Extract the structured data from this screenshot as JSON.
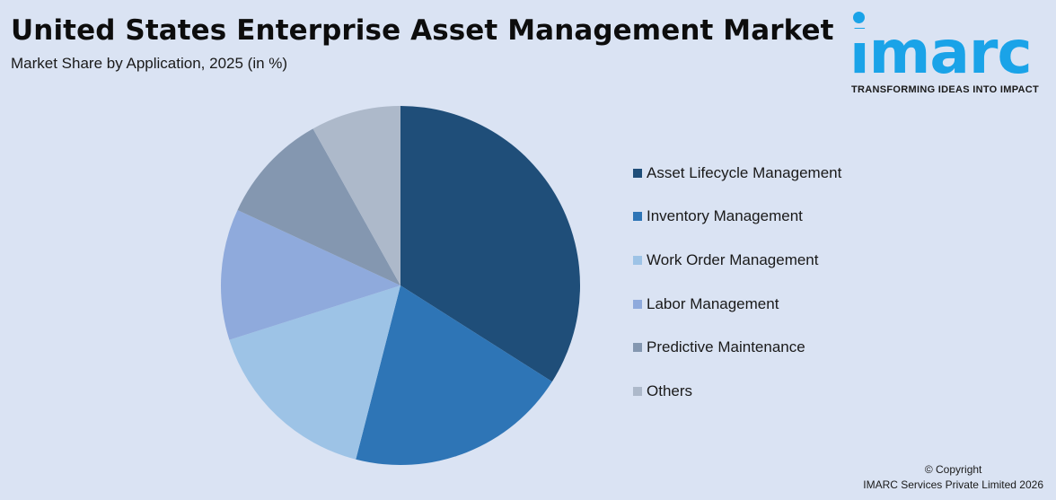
{
  "header": {
    "title": "United States Enterprise Asset Management Market",
    "subtitle": "Market Share by Application, 2025 (in %)"
  },
  "logo": {
    "wordmark": "imarc",
    "tagline": "TRANSFORMING IDEAS INTO IMPACT",
    "color": "#1AA3E8"
  },
  "footer": {
    "copyright": "© Copyright",
    "company": "IMARC Services Private Limited 2026"
  },
  "colors": {
    "background": "#DAE3F3"
  },
  "chart_data": {
    "type": "pie",
    "title": "United States Enterprise Asset Management Market",
    "subtitle": "Market Share by Application, 2025 (in %)",
    "start_angle_deg": 0,
    "direction": "clockwise",
    "legend_position": "right",
    "categories": [
      "Asset Lifecycle Management",
      "Inventory Management",
      "Work Order Management",
      "Labor Management",
      "Predictive Maintenance",
      "Others"
    ],
    "values": [
      34.0,
      20.0,
      16.1,
      11.8,
      10.0,
      8.1
    ],
    "colors": [
      "#1F4E79",
      "#2E75B6",
      "#9DC3E6",
      "#8FAADC",
      "#8497B0",
      "#ADB9CA"
    ],
    "data_labels_shown": false
  },
  "legend": {
    "items": [
      {
        "label": "Asset Lifecycle Management",
        "color": "#1F4E79"
      },
      {
        "label": "Inventory Management",
        "color": "#2E75B6"
      },
      {
        "label": "Work Order Management",
        "color": "#9DC3E6"
      },
      {
        "label": "Labor Management",
        "color": "#8FAADC"
      },
      {
        "label": "Predictive Maintenance",
        "color": "#8497B0"
      },
      {
        "label": "Others",
        "color": "#ADB9CA"
      }
    ]
  }
}
